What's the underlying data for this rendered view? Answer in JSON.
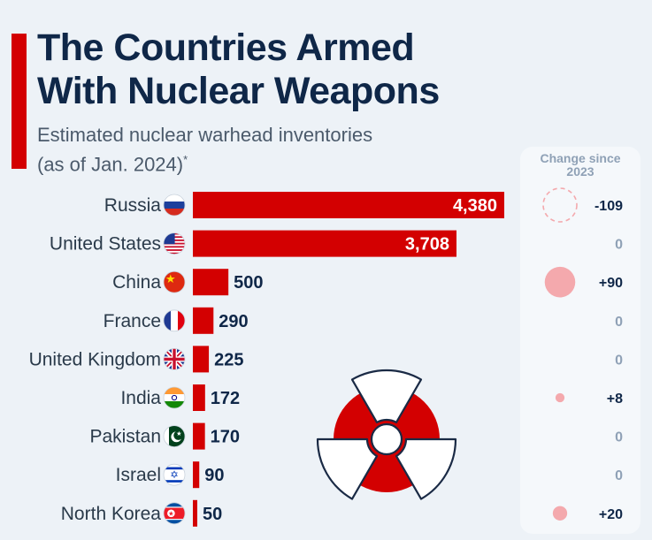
{
  "header": {
    "title_line1": "The Countries Armed",
    "title_line2": "With Nuclear Weapons",
    "subtitle_line1": "Estimated nuclear warhead inventories",
    "subtitle_line2": "(as of Jan. 2024)",
    "subtitle_mark": "*"
  },
  "change_panel": {
    "header_line1": "Change since",
    "header_line2": "2023"
  },
  "colors": {
    "bar": "#d30001",
    "bubble": "#f4a9ad",
    "title": "#0f2748",
    "panel": "#f5f8fb",
    "background": "#edf2f7"
  },
  "chart_data": {
    "type": "bar",
    "orientation": "horizontal",
    "title": "The Countries Armed With Nuclear Weapons",
    "subtitle": "Estimated nuclear warhead inventories (as of Jan. 2024)*",
    "categories": [
      "Russia",
      "United States",
      "China",
      "France",
      "United Kingdom",
      "India",
      "Pakistan",
      "Israel",
      "North Korea"
    ],
    "values": [
      4380,
      3708,
      500,
      290,
      225,
      172,
      170,
      90,
      50
    ],
    "value_labels": [
      "4,380",
      "3,708",
      "500",
      "290",
      "225",
      "172",
      "170",
      "90",
      "50"
    ],
    "flag_icons": [
      "russia-flag-icon",
      "usa-flag-icon",
      "china-flag-icon",
      "france-flag-icon",
      "uk-flag-icon",
      "india-flag-icon",
      "pakistan-flag-icon",
      "israel-flag-icon",
      "north-korea-flag-icon"
    ],
    "change_since_2023": [
      -109,
      0,
      90,
      0,
      0,
      8,
      0,
      0,
      20
    ],
    "change_labels": [
      "-109",
      "0",
      "+90",
      "0",
      "0",
      "+8",
      "0",
      "0",
      "+20"
    ],
    "xlim": [
      0,
      4380
    ],
    "decoration": "radiation-symbol-icon"
  }
}
